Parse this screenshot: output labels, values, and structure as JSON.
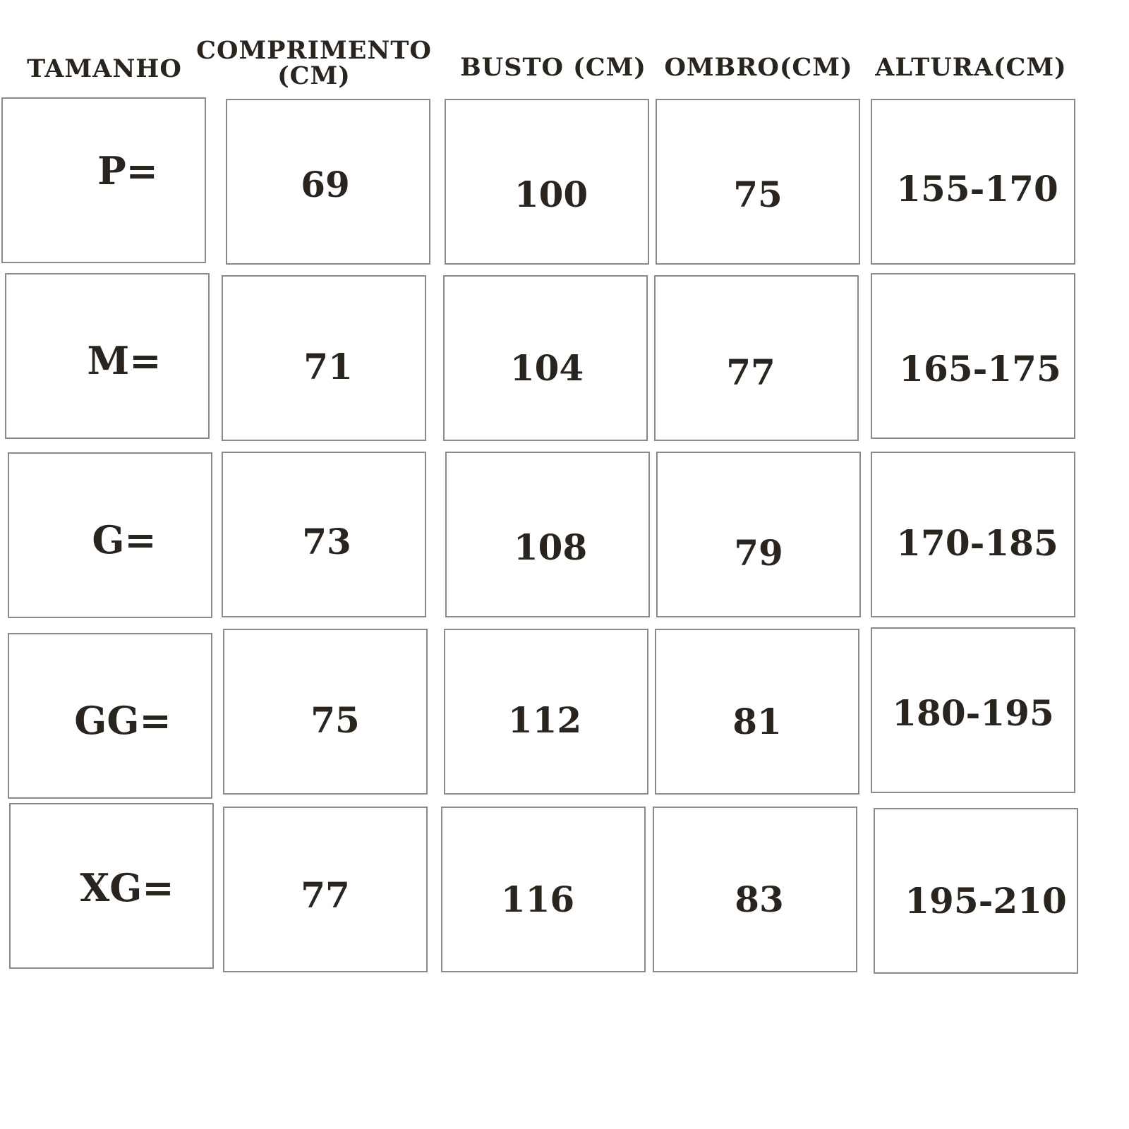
{
  "headers": [
    "TAMANHO",
    "COMPRIMENTO (CM)",
    "BUSTO (CM)",
    "OMBRO(CM)",
    "ALTURA(CM)"
  ],
  "header_lines": {
    "comprimento_1": "COMPRIMENTO",
    "comprimento_2": "(CM)"
  },
  "rows": [
    [
      "P=",
      "69",
      "100",
      "75",
      "155-170"
    ],
    [
      "M=",
      "71",
      "104",
      "77",
      "165-175"
    ],
    [
      "G=",
      "73",
      "108",
      "79",
      "170-185"
    ],
    [
      "GG=",
      "75",
      "112",
      "81",
      "180-195"
    ],
    [
      "XG=",
      "77",
      "116",
      "83",
      "195-210"
    ]
  ],
  "colors": {
    "text": "#2a241f",
    "border": "#8a8a8a"
  }
}
